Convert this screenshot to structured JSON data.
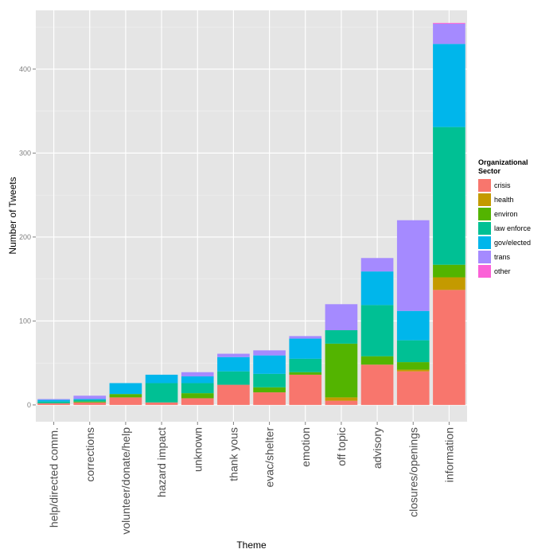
{
  "chart_data": {
    "type": "bar",
    "stacked": true,
    "title": "",
    "xlabel": "Theme",
    "ylabel": "Number of Tweets",
    "ylim": [
      -20,
      470
    ],
    "yticks": [
      0,
      100,
      200,
      300,
      400
    ],
    "categories": [
      "help/directed comm.",
      "corrections",
      "volunteer/donate/help",
      "hazard impact",
      "unknown",
      "thank yous",
      "evac/shelter",
      "emotion",
      "off topic",
      "advisory",
      "closures/openings",
      "information"
    ],
    "legend_title": [
      "Organizational",
      "Sector"
    ],
    "legend_position": "right",
    "series": [
      {
        "name": "crisis",
        "color": "#F8766D",
        "values": [
          2,
          3,
          9,
          3,
          8,
          24,
          15,
          36,
          5,
          48,
          40,
          137
        ]
      },
      {
        "name": "health",
        "color": "#C49A00",
        "values": [
          0,
          0,
          0,
          0,
          0,
          0,
          0,
          0,
          4,
          0,
          2,
          15
        ]
      },
      {
        "name": "environ",
        "color": "#53B400",
        "values": [
          0,
          1,
          4,
          0,
          6,
          0,
          6,
          3,
          64,
          10,
          9,
          15
        ]
      },
      {
        "name": "law enforce",
        "color": "#00C094",
        "values": [
          2,
          2,
          0,
          23,
          12,
          16,
          16,
          16,
          16,
          61,
          26,
          164
        ]
      },
      {
        "name": "gov/elected",
        "color": "#00B6EB",
        "values": [
          2,
          1,
          13,
          10,
          8,
          17,
          22,
          24,
          0,
          40,
          35,
          99
        ]
      },
      {
        "name": "trans",
        "color": "#A58AFF",
        "values": [
          1,
          4,
          0,
          0,
          5,
          4,
          6,
          3,
          31,
          16,
          108,
          24
        ]
      },
      {
        "name": "other",
        "color": "#FB61D7",
        "values": [
          0,
          0,
          0,
          0,
          0,
          0,
          0,
          0,
          0,
          0,
          0,
          1
        ]
      }
    ]
  }
}
